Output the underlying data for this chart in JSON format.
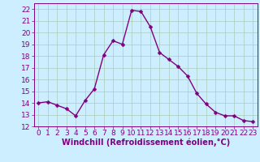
{
  "x": [
    0,
    1,
    2,
    3,
    4,
    5,
    6,
    7,
    8,
    9,
    10,
    11,
    12,
    13,
    14,
    15,
    16,
    17,
    18,
    19,
    20,
    21,
    22,
    23
  ],
  "y": [
    14.0,
    14.1,
    13.8,
    13.5,
    12.9,
    14.2,
    15.2,
    18.1,
    19.3,
    19.0,
    21.9,
    21.8,
    20.5,
    18.3,
    17.7,
    17.1,
    16.3,
    14.8,
    13.9,
    13.2,
    12.9,
    12.9,
    12.5,
    12.4
  ],
  "line_color": "#800080",
  "marker": "D",
  "marker_size": 2.5,
  "bg_color": "#cceeff",
  "grid_color": "#aaccbb",
  "xlabel": "Windchill (Refroidissement éolien,°C)",
  "ylim": [
    12,
    22.5
  ],
  "xlim": [
    -0.5,
    23.5
  ],
  "yticks": [
    12,
    13,
    14,
    15,
    16,
    17,
    18,
    19,
    20,
    21,
    22
  ],
  "xticks": [
    0,
    1,
    2,
    3,
    4,
    5,
    6,
    7,
    8,
    9,
    10,
    11,
    12,
    13,
    14,
    15,
    16,
    17,
    18,
    19,
    20,
    21,
    22,
    23
  ],
  "line_width": 1.0,
  "font_color": "#800080",
  "font_size": 6.5,
  "xlabel_fontsize": 7.0
}
